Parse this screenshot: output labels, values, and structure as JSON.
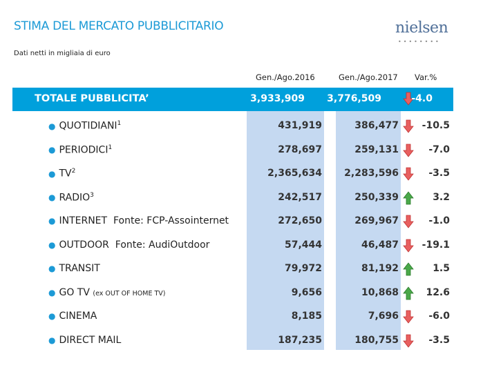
{
  "title": "STIMA DEL MERCATO PUBBLICITARIO",
  "logo": "nielsen",
  "subtitle": "Dati netti in migliaia di euro",
  "headers": {
    "c1": "Gen./Ago.2016",
    "c2": "Gen./Ago.2017",
    "c3": "Var.%"
  },
  "colors": {
    "accent": "#00a0dc",
    "column": "#c5d9f1",
    "down": "#e05050",
    "up": "#3a9a3a"
  },
  "total": {
    "label": "TOTALE PUBBLICITA’",
    "v2016": "3,933,909",
    "v2017": "3,776,509",
    "trend": "down",
    "var": "-4.0"
  },
  "rows": [
    {
      "label": "QUOTIDIANI",
      "sup": "1",
      "note": "",
      "v2016": "431,919",
      "v2017": "386,477",
      "trend": "down",
      "var": "-10.5"
    },
    {
      "label": "PERIODICI",
      "sup": "1",
      "note": "",
      "v2016": "278,697",
      "v2017": "259,131",
      "trend": "down",
      "var": "-7.0"
    },
    {
      "label": "TV",
      "sup": "2",
      "note": "",
      "v2016": "2,365,634",
      "v2017": "2,283,596",
      "trend": "down",
      "var": "-3.5"
    },
    {
      "label": "RADIO",
      "sup": "3",
      "note": "",
      "v2016": "242,517",
      "v2017": "250,339",
      "trend": "up",
      "var": "3.2"
    },
    {
      "label": "INTERNET",
      "sup": "",
      "note": "Fonte: FCP-Assointernet",
      "v2016": "272,650",
      "v2017": "269,967",
      "trend": "down",
      "var": "-1.0"
    },
    {
      "label": "OUTDOOR",
      "sup": "",
      "note": "Fonte: AudiOutdoor",
      "v2016": "57,444",
      "v2017": "46,487",
      "trend": "down",
      "var": "-19.1"
    },
    {
      "label": "TRANSIT",
      "sup": "",
      "note": "",
      "v2016": "79,972",
      "v2017": "81,192",
      "trend": "up",
      "var": "1.5"
    },
    {
      "label": "GO TV",
      "sup": "",
      "small": "(ex OUT OF HOME TV)",
      "note": "",
      "v2016": "9,656",
      "v2017": "10,868",
      "trend": "up",
      "var": "12.6"
    },
    {
      "label": "CINEMA",
      "sup": "",
      "note": "",
      "v2016": "8,185",
      "v2017": "7,696",
      "trend": "down",
      "var": "-6.0"
    },
    {
      "label": "DIRECT MAIL",
      "sup": "",
      "note": "",
      "v2016": "187,235",
      "v2017": "180,755",
      "trend": "down",
      "var": "-3.5"
    }
  ]
}
